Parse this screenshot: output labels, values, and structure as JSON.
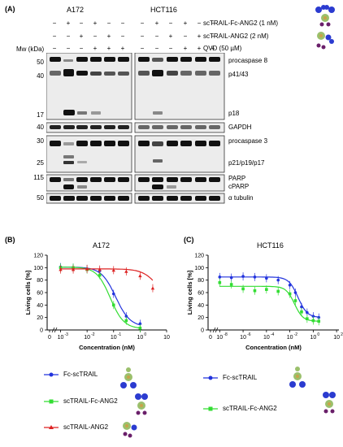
{
  "panel_a": {
    "label": "(A)",
    "cell_lines": [
      "A172",
      "HCT116"
    ],
    "treatments": [
      "scTRAIL-Fc-ANG2 (1 nM)",
      "scTRAIL-ANG2 (2 nM)",
      "QVD (50 µM)"
    ],
    "mw_header": "Mw (kDa)",
    "signs": [
      [
        "−",
        "+",
        "−",
        "+",
        "−",
        "−"
      ],
      [
        "−",
        "−",
        "+",
        "−",
        "+",
        "−"
      ],
      [
        "−",
        "−",
        "−",
        "+",
        "+",
        "+"
      ]
    ],
    "bands": [
      {
        "label": "procaspase 8"
      },
      {
        "label": "p41/43"
      },
      {
        "label": "p18"
      },
      {
        "label": "GAPDH"
      },
      {
        "label": "procaspase 3"
      },
      {
        "label": "p21/p19/p17"
      },
      {
        "label": "PARP"
      },
      {
        "label": "cPARP"
      },
      {
        "label": "α tubulin"
      }
    ],
    "mw_markers": [
      "50",
      "40",
      "17",
      "40",
      "30",
      "25",
      "115",
      "50"
    ]
  },
  "panel_b": {
    "label": "(B)",
    "title": "A172",
    "ylabel": "Living cells  [%]",
    "xlabel": "Concentration (nM)",
    "yticks": [
      "0",
      "20",
      "40",
      "60",
      "80",
      "100",
      "120"
    ],
    "xticks": [
      "0",
      "10",
      "10",
      "10",
      "10",
      "10",
      "10"
    ],
    "xtick_exps": [
      "",
      "-3",
      "-2",
      "-1",
      "0",
      "1",
      ""
    ],
    "legend": [
      "Fc-scTRAIL",
      "scTRAIL-Fc-ANG2",
      "scTRAIL-ANG2"
    ]
  },
  "panel_c": {
    "label": "(C)",
    "title": "HCT116",
    "ylabel": "Living cells  [%]",
    "xlabel": "Concentration (nM)",
    "yticks": [
      "0",
      "20",
      "40",
      "60",
      "80",
      "100",
      "120"
    ],
    "xticks": [
      "0",
      "10",
      "10",
      "10",
      "10",
      "10",
      "10"
    ],
    "xtick_exps": [
      "",
      "-8",
      "-6",
      "-4",
      "-2",
      "0",
      "2"
    ],
    "legend": [
      "Fc-scTRAIL",
      "scTRAIL-Fc-ANG2"
    ]
  },
  "colors": {
    "blue": "#2233dd",
    "green": "#33dd33",
    "red": "#dd2222"
  },
  "chart_data": [
    {
      "type": "scatter",
      "title": "A172",
      "xlabel": "Concentration (nM)",
      "ylabel": "Living cells  [%]",
      "xscale": "log",
      "ylim": [
        0,
        120
      ],
      "series": [
        {
          "name": "Fc-scTRAIL",
          "x": [
            0.001,
            0.003,
            0.01,
            0.03,
            0.1,
            0.3,
            1.0
          ],
          "y": [
            101,
            100,
            98,
            95,
            58,
            22,
            10
          ]
        },
        {
          "name": "scTRAIL-Fc-ANG2",
          "x": [
            0.001,
            0.003,
            0.01,
            0.03,
            0.1,
            0.3,
            1.0
          ],
          "y": [
            100,
            100,
            97,
            88,
            40,
            15,
            3
          ]
        },
        {
          "name": "scTRAIL-ANG2",
          "x": [
            0.001,
            0.003,
            0.01,
            0.03,
            0.1,
            0.3,
            1.0,
            3.0
          ],
          "y": [
            97,
            97,
            98,
            97,
            96,
            94,
            87,
            67
          ]
        }
      ]
    },
    {
      "type": "scatter",
      "title": "HCT116",
      "xlabel": "Concentration (nM)",
      "ylabel": "Living cells  [%]",
      "xscale": "log",
      "ylim": [
        0,
        120
      ],
      "series": [
        {
          "name": "Fc-scTRAIL",
          "x": [
            1e-08,
            1e-07,
            1e-06,
            1e-05,
            0.0001,
            0.001,
            0.01,
            0.03,
            0.1,
            0.3,
            1.0,
            3.0
          ],
          "y": [
            85,
            84,
            86,
            85,
            83,
            80,
            72,
            60,
            37,
            28,
            22,
            20
          ]
        },
        {
          "name": "scTRAIL-Fc-ANG2",
          "x": [
            1e-08,
            1e-07,
            1e-06,
            1e-05,
            0.0001,
            0.001,
            0.01,
            0.03,
            0.1,
            0.3,
            1.0,
            3.0
          ],
          "y": [
            76,
            73,
            66,
            63,
            65,
            62,
            58,
            47,
            29,
            18,
            15,
            14
          ]
        }
      ]
    }
  ]
}
